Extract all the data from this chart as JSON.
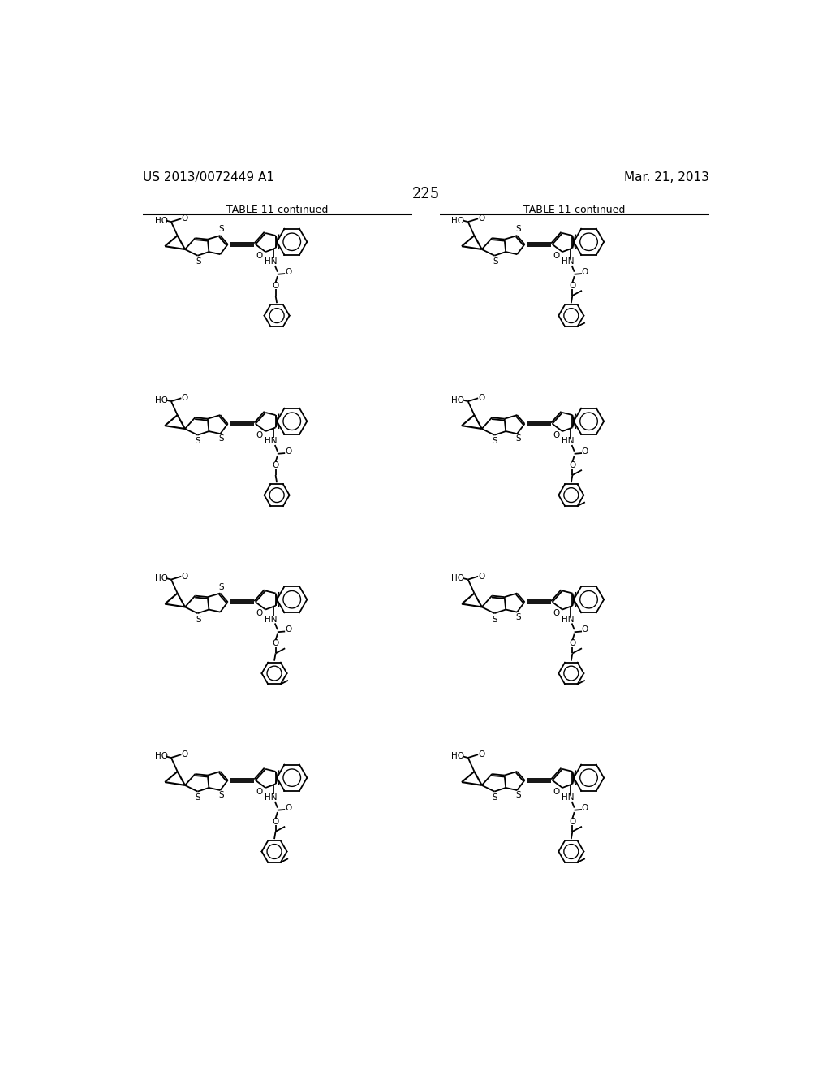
{
  "background_color": "#ffffff",
  "page_number": "225",
  "top_left_text": "US 2013/0072449 A1",
  "top_right_text": "Mar. 21, 2013",
  "table_title": "TABLE 11-continued",
  "figsize": [
    10.24,
    13.2
  ],
  "dpi": 100
}
